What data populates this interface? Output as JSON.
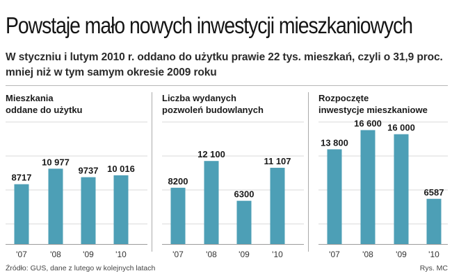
{
  "title": "Powstaje mało nowych inwestycji mieszkaniowych",
  "subtitle": "W styczniu i lutym 2010 r. oddano do użytku prawie 22 tys. mieszkań, czyli o 31,9 proc. mniej niż w tym samym okresie 2009 roku",
  "colors": {
    "bar": "#4d9fb6",
    "grid": "#d8d8d8",
    "baseline": "#9a9a9a"
  },
  "chart_data": [
    {
      "type": "bar",
      "title_lines": [
        "Mieszkania",
        "oddane do użytku"
      ],
      "categories": [
        "'07",
        "'08",
        "'09",
        "'10"
      ],
      "values": [
        8717,
        10977,
        9737,
        10016
      ],
      "value_labels": [
        "8717",
        "10 977",
        "9737",
        "10 016"
      ],
      "ylim": [
        0,
        20000
      ],
      "grid": true
    },
    {
      "type": "bar",
      "title_lines": [
        "Liczba wydanych",
        "pozwoleń budowlanych"
      ],
      "categories": [
        "'07",
        "'08",
        "'09",
        "'10"
      ],
      "values": [
        8200,
        12100,
        6300,
        11107
      ],
      "value_labels": [
        "8200",
        "12 100",
        "6300",
        "11 107"
      ],
      "ylim": [
        0,
        20000
      ],
      "grid": true
    },
    {
      "type": "bar",
      "title_lines": [
        "Rozpoczęte",
        "inwestycje mieszkaniowe"
      ],
      "categories": [
        "'07",
        "'08",
        "'09",
        "'10"
      ],
      "values": [
        13800,
        16600,
        16000,
        6587
      ],
      "value_labels": [
        "13 800",
        "16 600",
        "16 000",
        "6587"
      ],
      "ylim": [
        0,
        20000
      ],
      "grid": true
    }
  ],
  "footer": {
    "source": "Źródło: GUS, dane z lutego w kolejnych latach",
    "credit": "Rys. MC"
  }
}
